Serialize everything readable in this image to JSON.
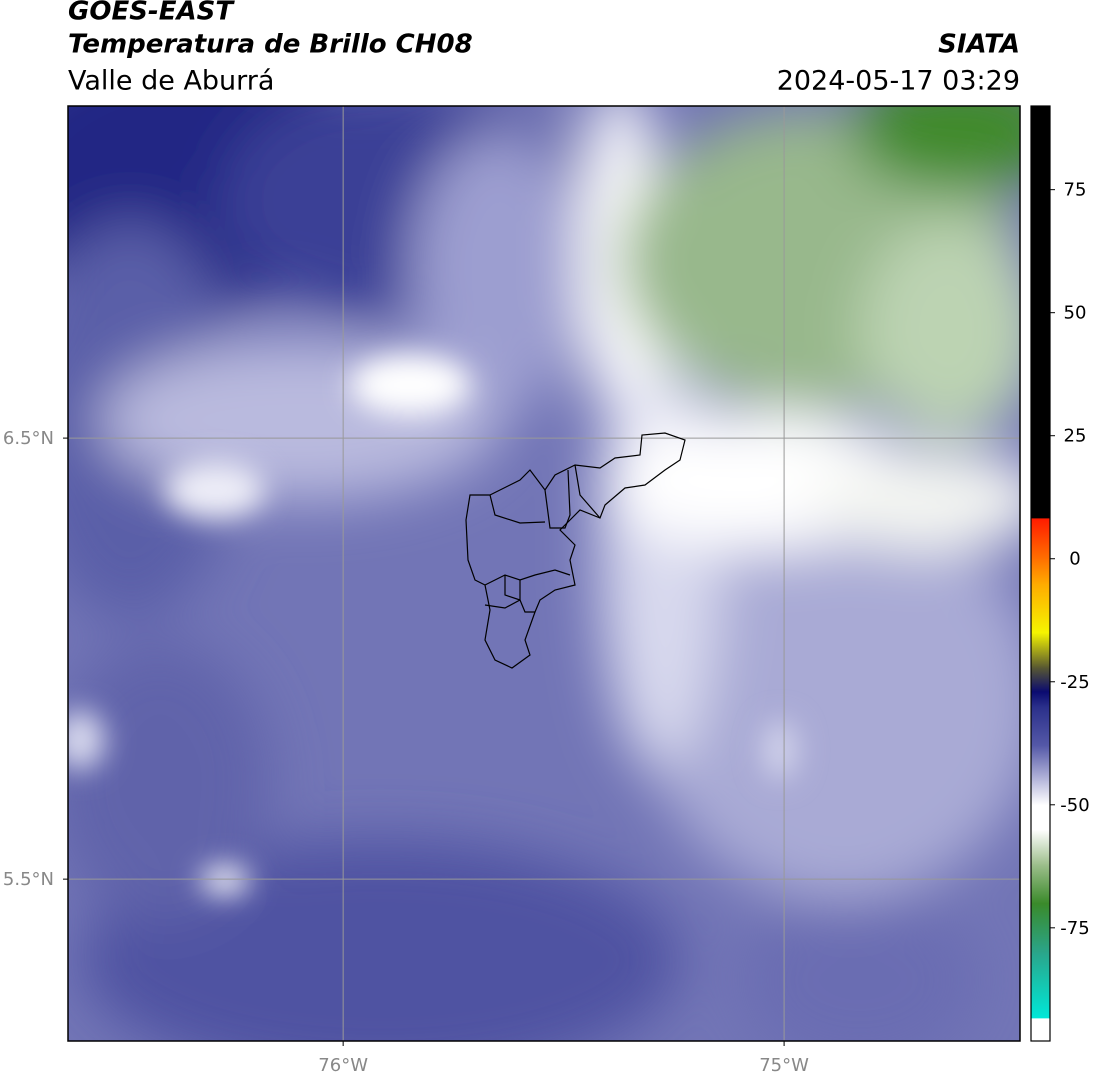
{
  "header": {
    "title": "GOES-EAST",
    "subtitle": "Temperatura de Brillo CH08",
    "source": "SIATA",
    "region": "Valle de Aburrá",
    "timestamp": "2024-05-17 03:29"
  },
  "map": {
    "lon_range": [
      -76.624,
      -74.465
    ],
    "lat_range": [
      5.133,
      7.253
    ],
    "lat_ticks": [
      {
        "value": 6.5,
        "label": "6.5°N"
      },
      {
        "value": 5.5,
        "label": "5.5°N"
      }
    ],
    "lon_ticks": [
      {
        "value": -76,
        "label": "76°W"
      },
      {
        "value": -75,
        "label": "75°W"
      }
    ],
    "grid": true
  },
  "colorbar": {
    "range": [
      -98,
      92
    ],
    "ticks": [
      75,
      50,
      25,
      0,
      -25,
      -50,
      -75
    ],
    "colormap": [
      {
        "value": -98,
        "color": "#ffffff"
      },
      {
        "value": -93.3,
        "color": "#ffffff"
      },
      {
        "value": -93.3,
        "color": "#00e8d8"
      },
      {
        "value": -80,
        "color": "#2aa58a"
      },
      {
        "value": -70,
        "color": "#3a8a2a"
      },
      {
        "value": -62,
        "color": "#9fc08e"
      },
      {
        "value": -55,
        "color": "#ffffff"
      },
      {
        "value": -50,
        "color": "#ffffff"
      },
      {
        "value": -45,
        "color": "#b8b9dc"
      },
      {
        "value": -38,
        "color": "#5559a8"
      },
      {
        "value": -30,
        "color": "#2a2f8a"
      },
      {
        "value": -27,
        "color": "#0a0a70"
      },
      {
        "value": -22,
        "color": "#5a5a30"
      },
      {
        "value": -15,
        "color": "#f5f500"
      },
      {
        "value": -5,
        "color": "#ffaa00"
      },
      {
        "value": 0,
        "color": "#ff7000"
      },
      {
        "value": 8.3,
        "color": "#ff1a00"
      },
      {
        "value": 8.3,
        "color": "#000000"
      },
      {
        "value": 92,
        "color": "#000000"
      }
    ]
  }
}
